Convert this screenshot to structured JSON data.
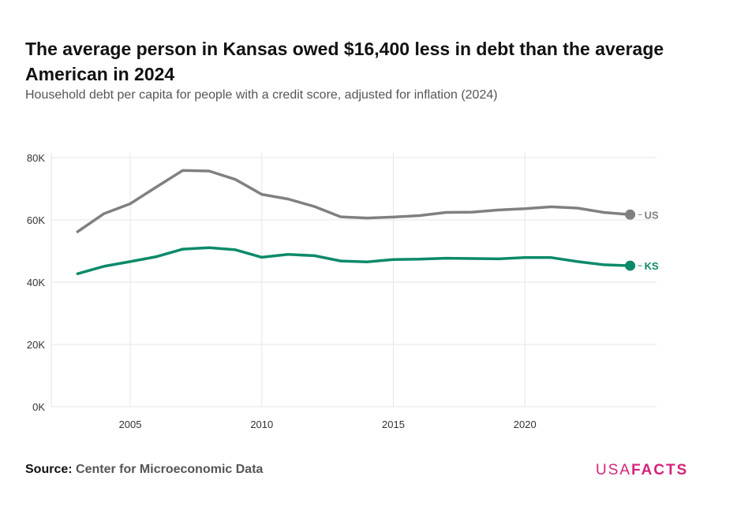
{
  "header": {
    "title": "The average person in Kansas owed $16,400 less in debt than the average American in 2024",
    "subtitle": "Household debt per capita for people with a credit score, adjusted for inflation (2024)"
  },
  "footer": {
    "source_key": "Source:",
    "source_value": "Center for Microeconomic Data",
    "logo_light": "USA",
    "logo_bold": "FACTS"
  },
  "colors": {
    "us": "#808080",
    "ks": "#0b8a6a",
    "grid": "#e6e6e6",
    "logo": "#d4237a"
  },
  "chart_data": {
    "type": "line",
    "title": "The average person in Kansas owed $16,400 less in debt than the average American in 2024",
    "subtitle": "Household debt per capita for people with a credit score, adjusted for inflation (2024)",
    "x": [
      2003,
      2004,
      2005,
      2006,
      2007,
      2008,
      2009,
      2010,
      2011,
      2012,
      2013,
      2014,
      2015,
      2016,
      2017,
      2018,
      2019,
      2020,
      2021,
      2022,
      2023,
      2024
    ],
    "series": [
      {
        "name": "US",
        "color": "#808080",
        "values": [
          56200,
          62000,
          65200,
          70600,
          75900,
          75700,
          73000,
          68200,
          66700,
          64300,
          61000,
          60600,
          60900,
          61400,
          62400,
          62500,
          63200,
          63600,
          64200,
          63800,
          62400,
          61700
        ]
      },
      {
        "name": "KS",
        "color": "#0b8a6a",
        "values": [
          42700,
          45100,
          46600,
          48200,
          50600,
          51100,
          50400,
          48000,
          48900,
          48500,
          46800,
          46500,
          47300,
          47400,
          47700,
          47600,
          47500,
          47900,
          47900,
          46600,
          45600,
          45300
        ]
      }
    ],
    "xticks": [
      2005,
      2010,
      2015,
      2020
    ],
    "yticks": [
      0,
      20000,
      40000,
      60000,
      80000
    ],
    "ytick_labels": [
      "0K",
      "20K",
      "40K",
      "60K",
      "80K"
    ],
    "xlim": [
      2002,
      2025
    ],
    "ylim": [
      0,
      80000
    ],
    "grid": true,
    "legend": "end-labels"
  }
}
